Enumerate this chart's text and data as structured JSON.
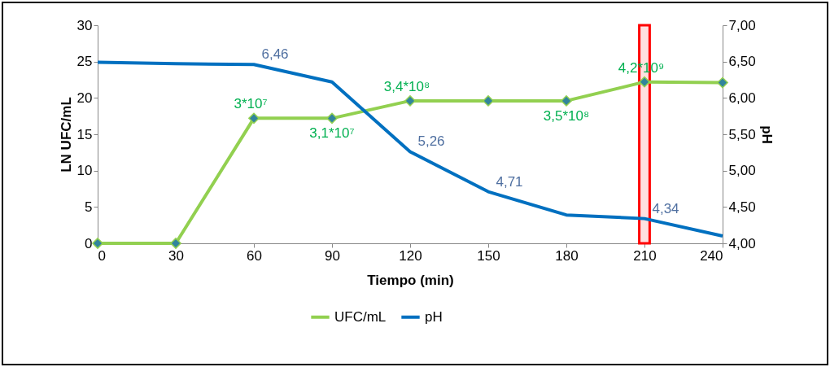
{
  "chart_data": {
    "type": "line",
    "xlabel": "Tiempo (min)",
    "ylabel": "LN UFC/mL",
    "y2label": "pH",
    "x": [
      0,
      30,
      60,
      90,
      120,
      150,
      180,
      210,
      240
    ],
    "xlim": [
      0,
      240
    ],
    "xticks": [
      0,
      30,
      60,
      90,
      120,
      150,
      180,
      210,
      240
    ],
    "ylim": [
      0,
      30
    ],
    "yticks": [
      0,
      5,
      10,
      15,
      20,
      25,
      30
    ],
    "y2lim": [
      4,
      7
    ],
    "y2ticks": [
      {
        "value": 4,
        "label": "4,00"
      },
      {
        "value": 4.5,
        "label": "4,50"
      },
      {
        "value": 5,
        "label": "5,00"
      },
      {
        "value": 5.5,
        "label": "5,50"
      },
      {
        "value": 6,
        "label": "6,00"
      },
      {
        "value": 6.5,
        "label": "6,50"
      },
      {
        "value": 7,
        "label": "7,00"
      }
    ],
    "series": [
      {
        "name": "UFC/mL",
        "color": "#92d050",
        "marker": "diamond",
        "values": [
          0,
          0,
          17.2,
          17.2,
          19.6,
          19.6,
          19.6,
          22.2,
          22.1
        ]
      },
      {
        "name": "pH",
        "color": "#0070c0",
        "axis": "y2",
        "values": [
          6.49,
          6.47,
          6.46,
          6.22,
          5.26,
          4.71,
          4.39,
          4.34,
          4.1
        ],
        "value_labels": [
          null,
          null,
          "6,46",
          null,
          "5,26",
          "4,71",
          null,
          "4,34",
          null
        ]
      }
    ],
    "annotations": [
      {
        "text": "3*10⁷",
        "x": 60,
        "y": 17.2
      },
      {
        "text": "3,1*10⁷",
        "x": 90,
        "y": 17.2
      },
      {
        "text": "3,4*10⁸",
        "x": 120,
        "y": 19.6
      },
      {
        "text": "3,5*10⁸",
        "x": 180,
        "y": 19.6
      },
      {
        "text": "4,2*10⁹",
        "x": 210,
        "y": 22.2
      }
    ],
    "bands": [
      {
        "axis": "x",
        "from": 208,
        "to": 212,
        "color": "#ff0000"
      }
    ],
    "legend": "bottom",
    "grid": false
  }
}
